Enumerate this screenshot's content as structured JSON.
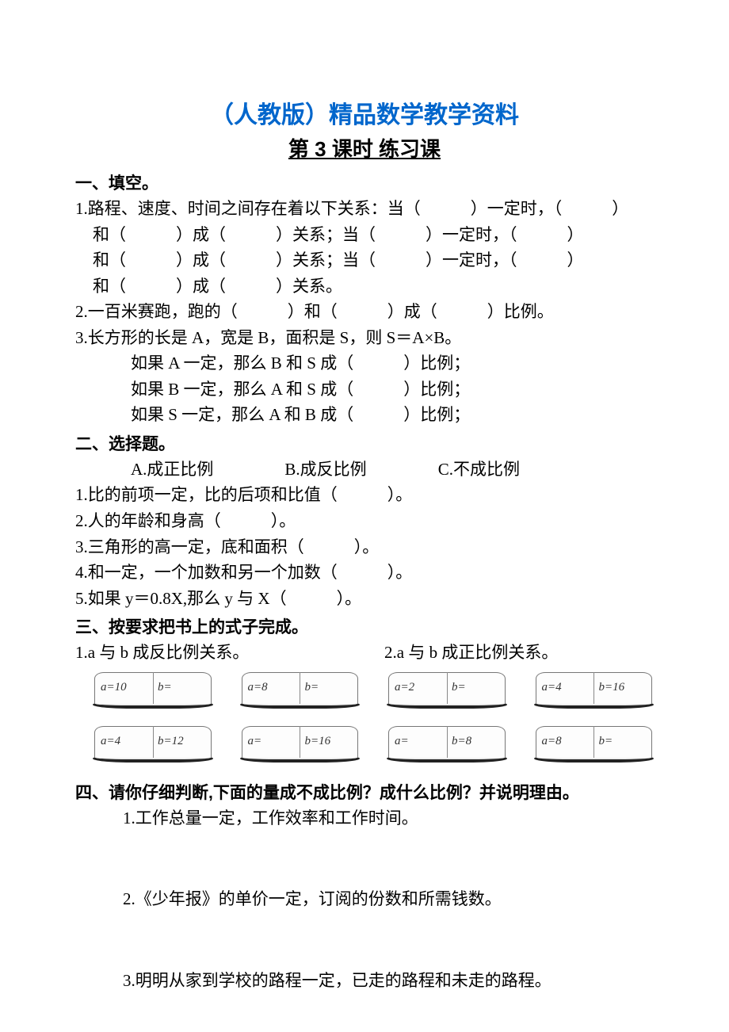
{
  "title_main": "（人教版）精品数学教学资料",
  "title_sub": "第 3 课时  练习课",
  "s1": {
    "head": "一、填空。",
    "q1a": "1.路程、速度、时间之间存在着以下关系：当（　　　）一定时，（　　　）",
    "q1b": "和（　　　）成（　　　）关系；当（　　　）一定时，（　　　）",
    "q1c": "和（　　　）成（　　　）关系；当（　　　）一定时，（　　　）",
    "q1d": "和（　　　）成（　　　）关系。",
    "q2": "2.一百米赛跑，跑的（　　　）和（　　　）成（　　　）比例。",
    "q3a": "3.长方形的长是 A，宽是 B，面积是 S，则 S＝A×B。",
    "q3b": "如果 A 一定，那么 B 和 S 成（　　　）比例；",
    "q3c": "如果 B 一定，那么 A 和 S 成（　　　）比例；",
    "q3d": "如果 S 一定，那么 A 和 B 成（　　　）比例；"
  },
  "s2": {
    "head": "二、选择题。",
    "choice_a": "A.成正比例",
    "choice_b": "B.成反比例",
    "choice_c": "C.不成比例",
    "q1": "1.比的前项一定，比的后项和比值（　　　）。",
    "q2": "2.人的年龄和身高（　　　）。",
    "q3": "3.三角形的高一定，底和面积（　　　）。",
    "q4": "4.和一定，一个加数和另一个加数（　　　）。",
    "q5": "5.如果 y＝0.8X,那么 y 与 X（　　　）。"
  },
  "s3": {
    "head": "三、按要求把书上的式子完成。",
    "t1": "1.a 与 b 成反比例关系。",
    "t2": "2.a 与 b 成正比例关系。",
    "books": {
      "row1": [
        {
          "l": "a=10",
          "r": "b="
        },
        {
          "l": "a=8",
          "r": "b="
        },
        {
          "l": "a=2",
          "r": "b="
        },
        {
          "l": "a=4",
          "r": "b=16"
        }
      ],
      "row2": [
        {
          "l": "a=4",
          "r": "b=12"
        },
        {
          "l": "a=",
          "r": "b=16"
        },
        {
          "l": "a=",
          "r": "b=8"
        },
        {
          "l": "a=8",
          "r": "b="
        }
      ]
    }
  },
  "s4": {
    "head": "四、请你仔细判断,下面的量成不成比例？成什么比例？并说明理由。",
    "q1": "1.工作总量一定，工作效率和工作时间。",
    "q2": "2.《少年报》的单价一定，订阅的份数和所需钱数。",
    "q3": "3.明明从家到学校的路程一定，已走的路程和未走的路程。"
  },
  "colors": {
    "title": "#0066cc",
    "text": "#000000",
    "book_border": "#777777",
    "book_base": "#222222",
    "background": "#ffffff"
  }
}
